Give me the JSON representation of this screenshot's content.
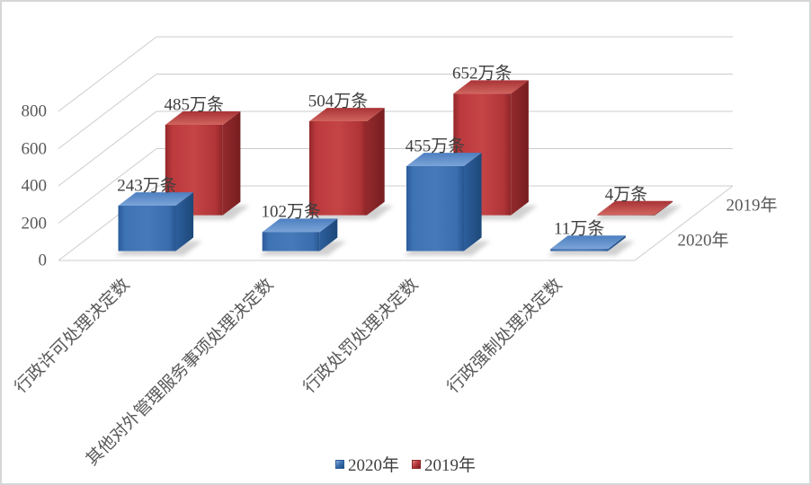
{
  "chart_data": {
    "type": "bar",
    "subtype": "3d-clustered-column",
    "title": "",
    "categories": [
      "行政许可处理决定数",
      "其他对外管理服务事项处理决定数",
      "行政处罚处理决定数",
      "行政强制处理决定数"
    ],
    "series": [
      {
        "name": "2020年",
        "color": "#3e73b4",
        "values": [
          243,
          102,
          455,
          11
        ]
      },
      {
        "name": "2019年",
        "color": "#bc3a3d",
        "values": [
          485,
          504,
          652,
          4
        ]
      }
    ],
    "data_label_suffix": "万条",
    "data_labels": {
      "2020年": [
        "243万条",
        "102万条",
        "455万条",
        "11万条"
      ],
      "2019年": [
        "485万条",
        "504万条",
        "652万条",
        "4万条"
      ]
    },
    "yticks": [
      0,
      200,
      400,
      600,
      800
    ],
    "ylim": [
      0,
      800
    ],
    "depth_axis_labels": [
      "2020年",
      "2019年"
    ],
    "legend_position": "bottom",
    "grid": true,
    "colors": {
      "gridline": "#cccccc",
      "tick_text": "#595959",
      "value_text": "#3f3f3f",
      "category_text": "#595959",
      "background": "#ffffff",
      "border": "#d6d6d6"
    }
  }
}
